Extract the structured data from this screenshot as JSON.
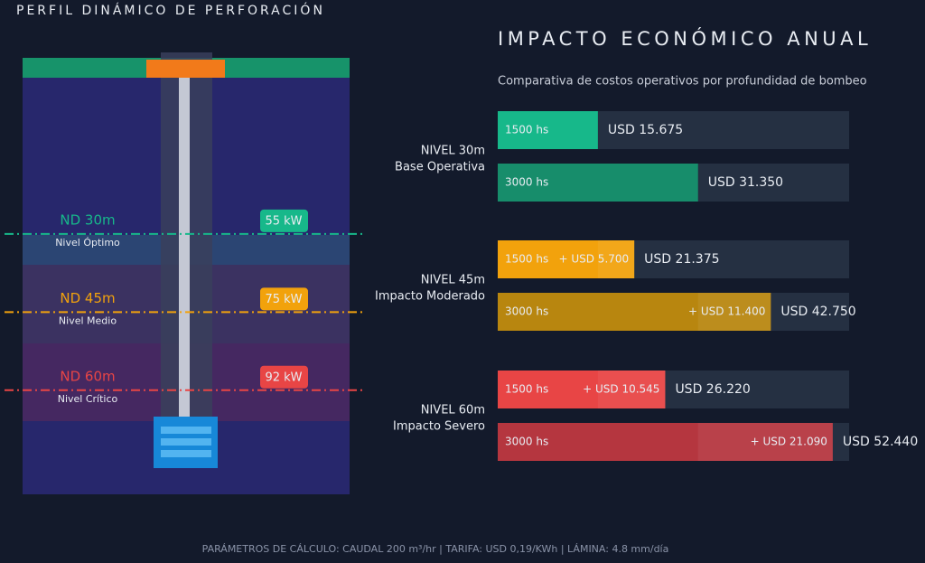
{
  "well": {
    "title": "PERFIL DINÁMICO DE PERFORACIÓN",
    "ylim": [
      0,
      80
    ],
    "levels": [
      {
        "depth": 30,
        "label": "ND 30m",
        "sub": "Nivel Óptimo",
        "power_label": "55 kW",
        "color": "#17b88a"
      },
      {
        "depth": 45,
        "label": "ND 45m",
        "sub": "Nivel Medio",
        "power_label": "75 kW",
        "color": "#f2a20c"
      },
      {
        "depth": 60,
        "label": "ND 60m",
        "sub": "Nivel Crítico",
        "power_label": "92 kW",
        "color": "#e84545"
      }
    ]
  },
  "chart_data": {
    "type": "bar",
    "title": "IMPACTO ECONÓMICO ANUAL",
    "subtitle": "Comparativa de costos operativos por profundidad de bombeo",
    "xlim": [
      0,
      55000
    ],
    "groups": [
      {
        "name": "NIVEL 30m",
        "note": "Base Operativa",
        "bars": [
          {
            "label": "1500 hs",
            "value": 15675,
            "value_label": "USD 15.675",
            "color": "#17b88a"
          },
          {
            "label": "3000 hs",
            "value": 31350,
            "value_label": "USD 31.350",
            "color": "#178d6b"
          }
        ]
      },
      {
        "name": "NIVEL 45m",
        "note": "Impacto Moderado",
        "bars": [
          {
            "label": "1500 hs",
            "value": 21375,
            "value_label": "USD 21.375",
            "delta": 5700,
            "delta_label": "+ USD 5.700",
            "color": "#f2a20c"
          },
          {
            "label": "3000 hs",
            "value": 42750,
            "value_label": "USD 42.750",
            "delta": 11400,
            "delta_label": "+ USD 11.400",
            "color": "#b8860f"
          }
        ]
      },
      {
        "name": "NIVEL 60m",
        "note": "Impacto Severo",
        "bars": [
          {
            "label": "1500 hs",
            "value": 26220,
            "value_label": "USD 26.220",
            "delta": 10545,
            "delta_label": "+ USD 10.545",
            "color": "#e84545"
          },
          {
            "label": "3000 hs",
            "value": 52440,
            "value_label": "USD 52.440",
            "delta": 21090,
            "delta_label": "+ USD 21.090",
            "color": "#b5363f"
          }
        ]
      }
    ]
  },
  "footer": "PARÁMETROS DE CÁLCULO: CAUDAL 200 m³/hr  |  TARIFA: USD 0,19/KWh  |  LÁMINA: 4.8 mm/día"
}
